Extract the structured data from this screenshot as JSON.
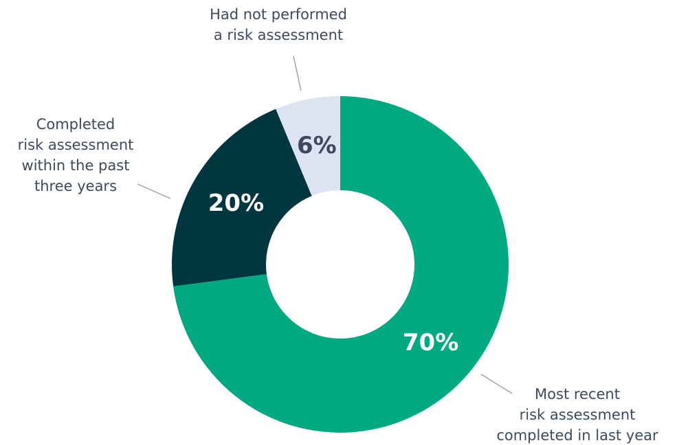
{
  "chart_data": {
    "type": "donut",
    "categories": [
      "Most recent\nrisk assessment\ncompleted in last year",
      "Completed\nrisk assessment\nwithin the past\nthree years",
      "Had not performed\na risk assessment"
    ],
    "values": [
      70,
      20,
      6
    ],
    "value_labels": [
      "70%",
      "20%",
      "6%"
    ],
    "colors": [
      "#00a981",
      "#003640",
      "#dde3f2"
    ]
  }
}
